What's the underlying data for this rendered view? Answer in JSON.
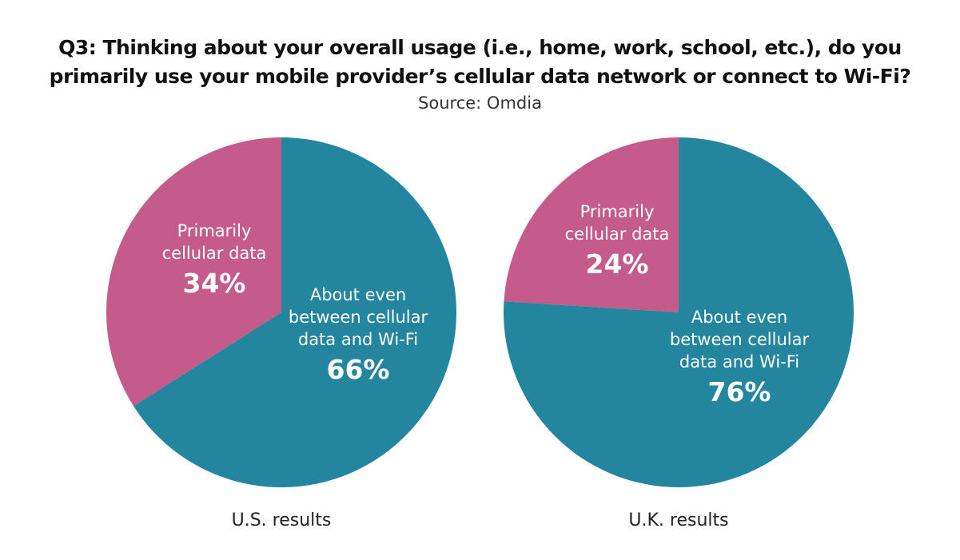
{
  "title": "Q3: Thinking about your overall usage (i.e., home, work, school, etc.), do you primarily use your mobile provider’s cellular data network or connect to Wi-Fi?",
  "subtitle": "Source: Omdia",
  "colors": {
    "cellular": "#c55b8a",
    "about_even": "#23869e"
  },
  "chart_data": [
    {
      "type": "pie",
      "caption": "U.S. results",
      "slices": [
        {
          "label_lines": [
            "Primarily",
            "cellular data"
          ],
          "value_text": "34%",
          "value": 34,
          "color_key": "cellular"
        },
        {
          "label_lines": [
            "About even",
            "between cellular",
            "data and Wi-Fi"
          ],
          "value_text": "66%",
          "value": 66,
          "color_key": "about_even"
        }
      ]
    },
    {
      "type": "pie",
      "caption": "U.K. results",
      "slices": [
        {
          "label_lines": [
            "Primarily",
            "cellular data"
          ],
          "value_text": "24%",
          "value": 24,
          "color_key": "cellular"
        },
        {
          "label_lines": [
            "About even",
            "between cellular",
            "data and Wi-Fi"
          ],
          "value_text": "76%",
          "value": 76,
          "color_key": "about_even"
        }
      ]
    }
  ]
}
